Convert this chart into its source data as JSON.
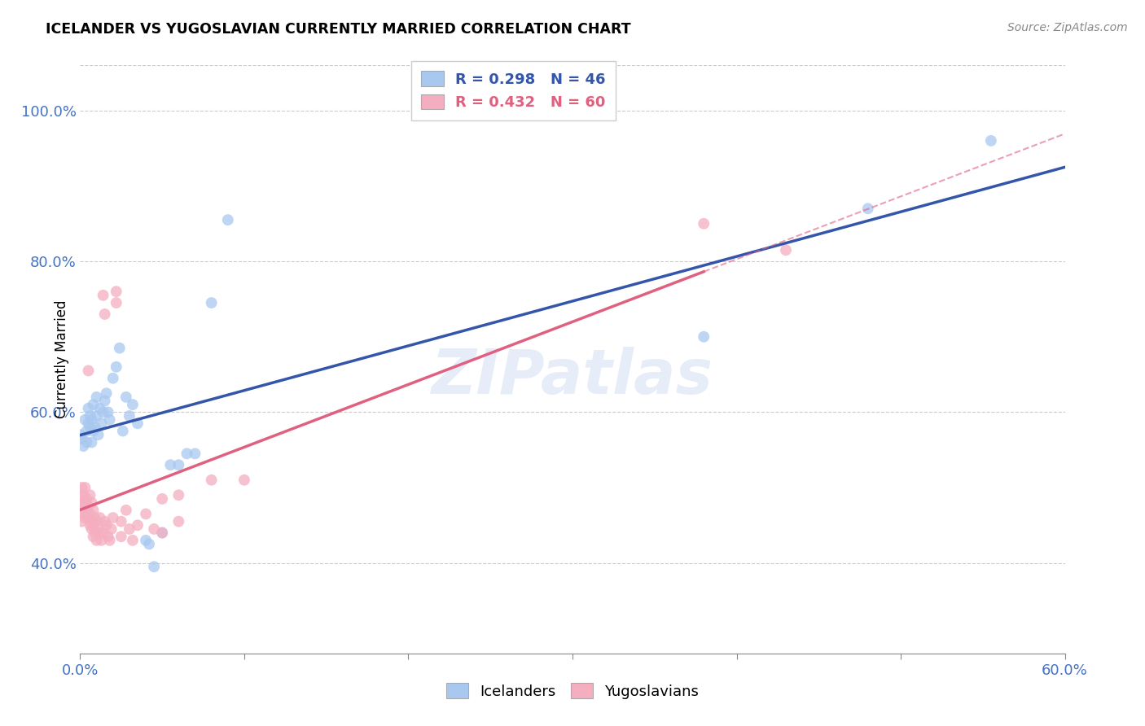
{
  "title": "ICELANDER VS YUGOSLAVIAN CURRENTLY MARRIED CORRELATION CHART",
  "source": "Source: ZipAtlas.com",
  "ylabel": "Currently Married",
  "ytick_labels": [
    "40.0%",
    "60.0%",
    "80.0%",
    "100.0%"
  ],
  "ytick_values": [
    0.4,
    0.6,
    0.8,
    1.0
  ],
  "xlim": [
    0.0,
    0.6
  ],
  "ylim": [
    0.28,
    1.06
  ],
  "icelander_color": "#a8c8f0",
  "yugoslavian_color": "#f4aec0",
  "icelander_line_color": "#3355aa",
  "yugoslavian_line_color": "#e06080",
  "watermark": "ZIPatlas",
  "icelander_R": 0.298,
  "icelander_N": 46,
  "yugoslavian_R": 0.432,
  "yugoslavian_N": 60,
  "icelander_data": [
    [
      0.0,
      0.57
    ],
    [
      0.001,
      0.565
    ],
    [
      0.002,
      0.555
    ],
    [
      0.003,
      0.59
    ],
    [
      0.004,
      0.56
    ],
    [
      0.004,
      0.575
    ],
    [
      0.005,
      0.585
    ],
    [
      0.005,
      0.605
    ],
    [
      0.006,
      0.58
    ],
    [
      0.006,
      0.595
    ],
    [
      0.007,
      0.59
    ],
    [
      0.007,
      0.56
    ],
    [
      0.008,
      0.575
    ],
    [
      0.008,
      0.61
    ],
    [
      0.009,
      0.58
    ],
    [
      0.01,
      0.595
    ],
    [
      0.01,
      0.62
    ],
    [
      0.011,
      0.57
    ],
    [
      0.012,
      0.605
    ],
    [
      0.013,
      0.585
    ],
    [
      0.014,
      0.6
    ],
    [
      0.015,
      0.615
    ],
    [
      0.016,
      0.625
    ],
    [
      0.017,
      0.6
    ],
    [
      0.018,
      0.59
    ],
    [
      0.02,
      0.645
    ],
    [
      0.022,
      0.66
    ],
    [
      0.024,
      0.685
    ],
    [
      0.026,
      0.575
    ],
    [
      0.028,
      0.62
    ],
    [
      0.03,
      0.595
    ],
    [
      0.032,
      0.61
    ],
    [
      0.035,
      0.585
    ],
    [
      0.04,
      0.43
    ],
    [
      0.042,
      0.425
    ],
    [
      0.045,
      0.395
    ],
    [
      0.05,
      0.44
    ],
    [
      0.055,
      0.53
    ],
    [
      0.06,
      0.53
    ],
    [
      0.065,
      0.545
    ],
    [
      0.07,
      0.545
    ],
    [
      0.08,
      0.745
    ],
    [
      0.09,
      0.855
    ],
    [
      0.38,
      0.7
    ],
    [
      0.48,
      0.87
    ],
    [
      0.555,
      0.96
    ]
  ],
  "yugoslavian_data": [
    [
      0.0,
      0.49
    ],
    [
      0.0,
      0.48
    ],
    [
      0.001,
      0.5
    ],
    [
      0.001,
      0.47
    ],
    [
      0.001,
      0.455
    ],
    [
      0.002,
      0.475
    ],
    [
      0.002,
      0.465
    ],
    [
      0.002,
      0.49
    ],
    [
      0.003,
      0.5
    ],
    [
      0.003,
      0.46
    ],
    [
      0.003,
      0.48
    ],
    [
      0.004,
      0.47
    ],
    [
      0.004,
      0.485
    ],
    [
      0.005,
      0.655
    ],
    [
      0.005,
      0.46
    ],
    [
      0.005,
      0.475
    ],
    [
      0.006,
      0.49
    ],
    [
      0.006,
      0.45
    ],
    [
      0.006,
      0.465
    ],
    [
      0.007,
      0.455
    ],
    [
      0.007,
      0.445
    ],
    [
      0.007,
      0.48
    ],
    [
      0.008,
      0.435
    ],
    [
      0.008,
      0.45
    ],
    [
      0.008,
      0.47
    ],
    [
      0.009,
      0.46
    ],
    [
      0.009,
      0.44
    ],
    [
      0.01,
      0.455
    ],
    [
      0.01,
      0.43
    ],
    [
      0.011,
      0.445
    ],
    [
      0.012,
      0.44
    ],
    [
      0.012,
      0.46
    ],
    [
      0.013,
      0.43
    ],
    [
      0.014,
      0.755
    ],
    [
      0.014,
      0.44
    ],
    [
      0.015,
      0.73
    ],
    [
      0.015,
      0.455
    ],
    [
      0.016,
      0.45
    ],
    [
      0.017,
      0.435
    ],
    [
      0.018,
      0.43
    ],
    [
      0.019,
      0.445
    ],
    [
      0.02,
      0.46
    ],
    [
      0.022,
      0.76
    ],
    [
      0.022,
      0.745
    ],
    [
      0.025,
      0.455
    ],
    [
      0.025,
      0.435
    ],
    [
      0.028,
      0.47
    ],
    [
      0.03,
      0.445
    ],
    [
      0.032,
      0.43
    ],
    [
      0.035,
      0.45
    ],
    [
      0.04,
      0.465
    ],
    [
      0.045,
      0.445
    ],
    [
      0.05,
      0.485
    ],
    [
      0.05,
      0.44
    ],
    [
      0.06,
      0.49
    ],
    [
      0.06,
      0.455
    ],
    [
      0.08,
      0.51
    ],
    [
      0.1,
      0.51
    ],
    [
      0.38,
      0.85
    ],
    [
      0.43,
      0.815
    ]
  ]
}
